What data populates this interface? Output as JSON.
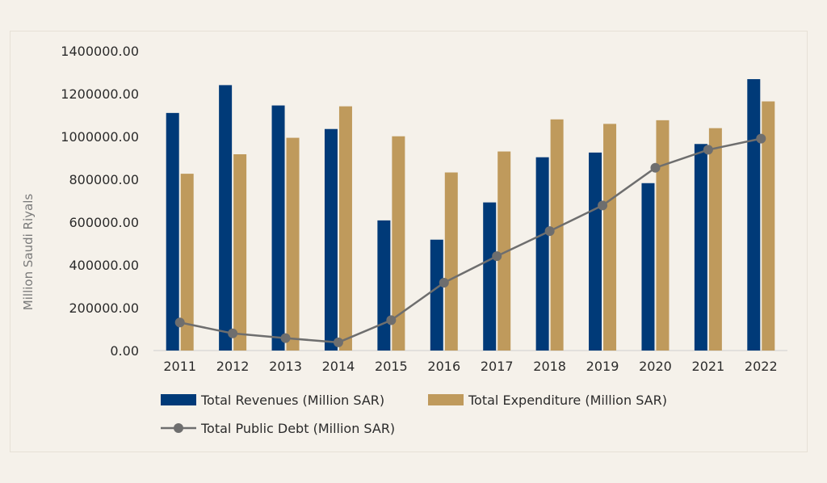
{
  "chart_data": {
    "type": "bar",
    "title": "",
    "xlabel": "",
    "ylabel": "Million Saudi Riyals",
    "ylim": [
      0,
      1400000
    ],
    "yticks": [
      "0.00",
      "200000.00",
      "400000.00",
      "600000.00",
      "800000.00",
      "1000000.00",
      "1200000.00",
      "1400000.00"
    ],
    "ytick_values": [
      0,
      200000,
      400000,
      600000,
      800000,
      1000000,
      1200000,
      1400000
    ],
    "categories": [
      "2011",
      "2012",
      "2013",
      "2014",
      "2015",
      "2016",
      "2017",
      "2018",
      "2019",
      "2020",
      "2021",
      "2022"
    ],
    "grid": false,
    "legend_position": "bottom",
    "series": [
      {
        "name": "Total Revenues (Million SAR)",
        "type": "bar",
        "color": "#003a78",
        "values": [
          1110000,
          1240000,
          1145000,
          1035000,
          608000,
          518000,
          692000,
          903000,
          925000,
          782000,
          965000,
          1268000
        ]
      },
      {
        "name": "Total Expenditure (Million SAR)",
        "type": "bar",
        "color": "#bf9a5c",
        "values": [
          826000,
          917000,
          994000,
          1141000,
          1001000,
          832000,
          930000,
          1080000,
          1059000,
          1076000,
          1039000,
          1164000
        ]
      },
      {
        "name": "Total Public Debt (Million SAR)",
        "type": "line",
        "color": "#6e6e6e",
        "values": [
          131000,
          80000,
          58000,
          38000,
          142000,
          317000,
          441000,
          558000,
          678000,
          854000,
          938000,
          990000
        ]
      }
    ]
  }
}
